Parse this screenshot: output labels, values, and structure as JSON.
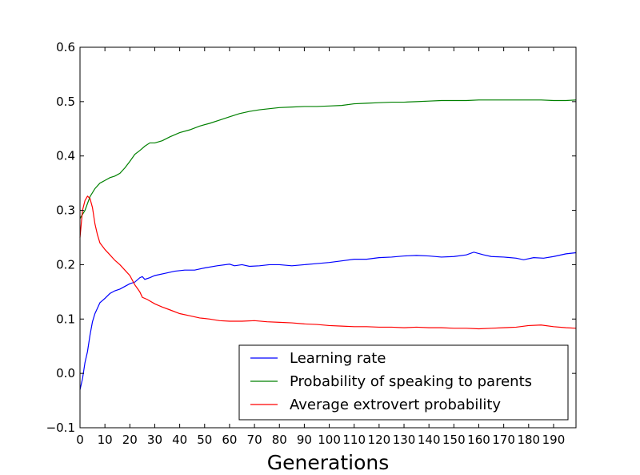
{
  "chart_data": {
    "type": "line",
    "title": "",
    "xlabel": "Generations",
    "ylabel": "",
    "xlim": [
      0,
      199
    ],
    "ylim": [
      -0.1,
      0.6
    ],
    "xticks": [
      0,
      10,
      20,
      30,
      40,
      50,
      60,
      70,
      80,
      90,
      100,
      110,
      120,
      130,
      140,
      150,
      160,
      170,
      180,
      190
    ],
    "xtick_labels": [
      "0",
      "10",
      "20",
      "30",
      "40",
      "50",
      "60",
      "70",
      "80",
      "90",
      "100",
      "110",
      "120",
      "130",
      "140",
      "150",
      "160",
      "170",
      "180",
      "190"
    ],
    "yticks": [
      -0.1,
      0.0,
      0.1,
      0.2,
      0.3,
      0.4,
      0.5,
      0.6
    ],
    "ytick_labels": [
      "−0.1",
      "0.0",
      "0.1",
      "0.2",
      "0.3",
      "0.4",
      "0.5",
      "0.6"
    ],
    "grid": false,
    "legend_position": "lower-right",
    "series": [
      {
        "name": "Learning rate",
        "color": "#0000ff",
        "points": [
          [
            0,
            -0.03
          ],
          [
            1,
            -0.01
          ],
          [
            2,
            0.02
          ],
          [
            3,
            0.04
          ],
          [
            4,
            0.07
          ],
          [
            5,
            0.095
          ],
          [
            6,
            0.11
          ],
          [
            7,
            0.12
          ],
          [
            8,
            0.13
          ],
          [
            10,
            0.138
          ],
          [
            12,
            0.147
          ],
          [
            14,
            0.152
          ],
          [
            16,
            0.155
          ],
          [
            18,
            0.16
          ],
          [
            20,
            0.165
          ],
          [
            22,
            0.168
          ],
          [
            24,
            0.176
          ],
          [
            25,
            0.178
          ],
          [
            26,
            0.173
          ],
          [
            28,
            0.176
          ],
          [
            30,
            0.18
          ],
          [
            34,
            0.184
          ],
          [
            38,
            0.188
          ],
          [
            42,
            0.19
          ],
          [
            46,
            0.19
          ],
          [
            50,
            0.194
          ],
          [
            55,
            0.198
          ],
          [
            60,
            0.201
          ],
          [
            62,
            0.198
          ],
          [
            65,
            0.2
          ],
          [
            68,
            0.197
          ],
          [
            72,
            0.198
          ],
          [
            76,
            0.2
          ],
          [
            80,
            0.2
          ],
          [
            85,
            0.198
          ],
          [
            90,
            0.2
          ],
          [
            95,
            0.202
          ],
          [
            100,
            0.204
          ],
          [
            105,
            0.207
          ],
          [
            110,
            0.21
          ],
          [
            115,
            0.21
          ],
          [
            120,
            0.213
          ],
          [
            125,
            0.214
          ],
          [
            130,
            0.216
          ],
          [
            135,
            0.217
          ],
          [
            140,
            0.216
          ],
          [
            145,
            0.214
          ],
          [
            150,
            0.215
          ],
          [
            155,
            0.218
          ],
          [
            158,
            0.223
          ],
          [
            162,
            0.218
          ],
          [
            165,
            0.215
          ],
          [
            170,
            0.214
          ],
          [
            175,
            0.212
          ],
          [
            178,
            0.209
          ],
          [
            182,
            0.213
          ],
          [
            186,
            0.212
          ],
          [
            190,
            0.215
          ],
          [
            195,
            0.22
          ],
          [
            199,
            0.222
          ]
        ]
      },
      {
        "name": "Probability of speaking to parents",
        "color": "#008000",
        "points": [
          [
            0,
            0.285
          ],
          [
            2,
            0.3
          ],
          [
            4,
            0.325
          ],
          [
            6,
            0.34
          ],
          [
            8,
            0.35
          ],
          [
            10,
            0.355
          ],
          [
            12,
            0.36
          ],
          [
            14,
            0.363
          ],
          [
            16,
            0.368
          ],
          [
            18,
            0.378
          ],
          [
            20,
            0.39
          ],
          [
            22,
            0.403
          ],
          [
            24,
            0.41
          ],
          [
            26,
            0.418
          ],
          [
            28,
            0.424
          ],
          [
            30,
            0.424
          ],
          [
            33,
            0.428
          ],
          [
            36,
            0.435
          ],
          [
            40,
            0.443
          ],
          [
            44,
            0.448
          ],
          [
            48,
            0.455
          ],
          [
            52,
            0.46
          ],
          [
            56,
            0.466
          ],
          [
            60,
            0.472
          ],
          [
            64,
            0.478
          ],
          [
            68,
            0.482
          ],
          [
            72,
            0.485
          ],
          [
            76,
            0.487
          ],
          [
            80,
            0.489
          ],
          [
            85,
            0.49
          ],
          [
            90,
            0.491
          ],
          [
            95,
            0.491
          ],
          [
            100,
            0.492
          ],
          [
            105,
            0.493
          ],
          [
            110,
            0.496
          ],
          [
            115,
            0.497
          ],
          [
            120,
            0.498
          ],
          [
            125,
            0.499
          ],
          [
            130,
            0.499
          ],
          [
            135,
            0.5
          ],
          [
            140,
            0.501
          ],
          [
            145,
            0.502
          ],
          [
            150,
            0.502
          ],
          [
            155,
            0.502
          ],
          [
            160,
            0.503
          ],
          [
            165,
            0.503
          ],
          [
            170,
            0.503
          ],
          [
            175,
            0.503
          ],
          [
            180,
            0.503
          ],
          [
            185,
            0.503
          ],
          [
            190,
            0.502
          ],
          [
            195,
            0.502
          ],
          [
            199,
            0.503
          ]
        ]
      },
      {
        "name": "Average extrovert probability",
        "color": "#ff0000",
        "points": [
          [
            0,
            0.25
          ],
          [
            1,
            0.3
          ],
          [
            2,
            0.318
          ],
          [
            3,
            0.326
          ],
          [
            4,
            0.322
          ],
          [
            5,
            0.305
          ],
          [
            6,
            0.275
          ],
          [
            7,
            0.255
          ],
          [
            8,
            0.24
          ],
          [
            10,
            0.228
          ],
          [
            12,
            0.218
          ],
          [
            14,
            0.208
          ],
          [
            16,
            0.2
          ],
          [
            18,
            0.19
          ],
          [
            20,
            0.18
          ],
          [
            22,
            0.163
          ],
          [
            24,
            0.15
          ],
          [
            25,
            0.14
          ],
          [
            27,
            0.136
          ],
          [
            30,
            0.128
          ],
          [
            33,
            0.122
          ],
          [
            36,
            0.117
          ],
          [
            40,
            0.11
          ],
          [
            44,
            0.106
          ],
          [
            48,
            0.102
          ],
          [
            52,
            0.1
          ],
          [
            56,
            0.097
          ],
          [
            60,
            0.096
          ],
          [
            65,
            0.096
          ],
          [
            70,
            0.097
          ],
          [
            75,
            0.095
          ],
          [
            80,
            0.094
          ],
          [
            85,
            0.093
          ],
          [
            90,
            0.091
          ],
          [
            95,
            0.09
          ],
          [
            100,
            0.088
          ],
          [
            105,
            0.087
          ],
          [
            110,
            0.086
          ],
          [
            115,
            0.086
          ],
          [
            120,
            0.085
          ],
          [
            125,
            0.085
          ],
          [
            130,
            0.084
          ],
          [
            135,
            0.085
          ],
          [
            140,
            0.084
          ],
          [
            145,
            0.084
          ],
          [
            150,
            0.083
          ],
          [
            155,
            0.083
          ],
          [
            160,
            0.082
          ],
          [
            165,
            0.083
          ],
          [
            170,
            0.084
          ],
          [
            175,
            0.085
          ],
          [
            180,
            0.088
          ],
          [
            185,
            0.089
          ],
          [
            190,
            0.086
          ],
          [
            195,
            0.084
          ],
          [
            199,
            0.083
          ]
        ]
      }
    ]
  }
}
